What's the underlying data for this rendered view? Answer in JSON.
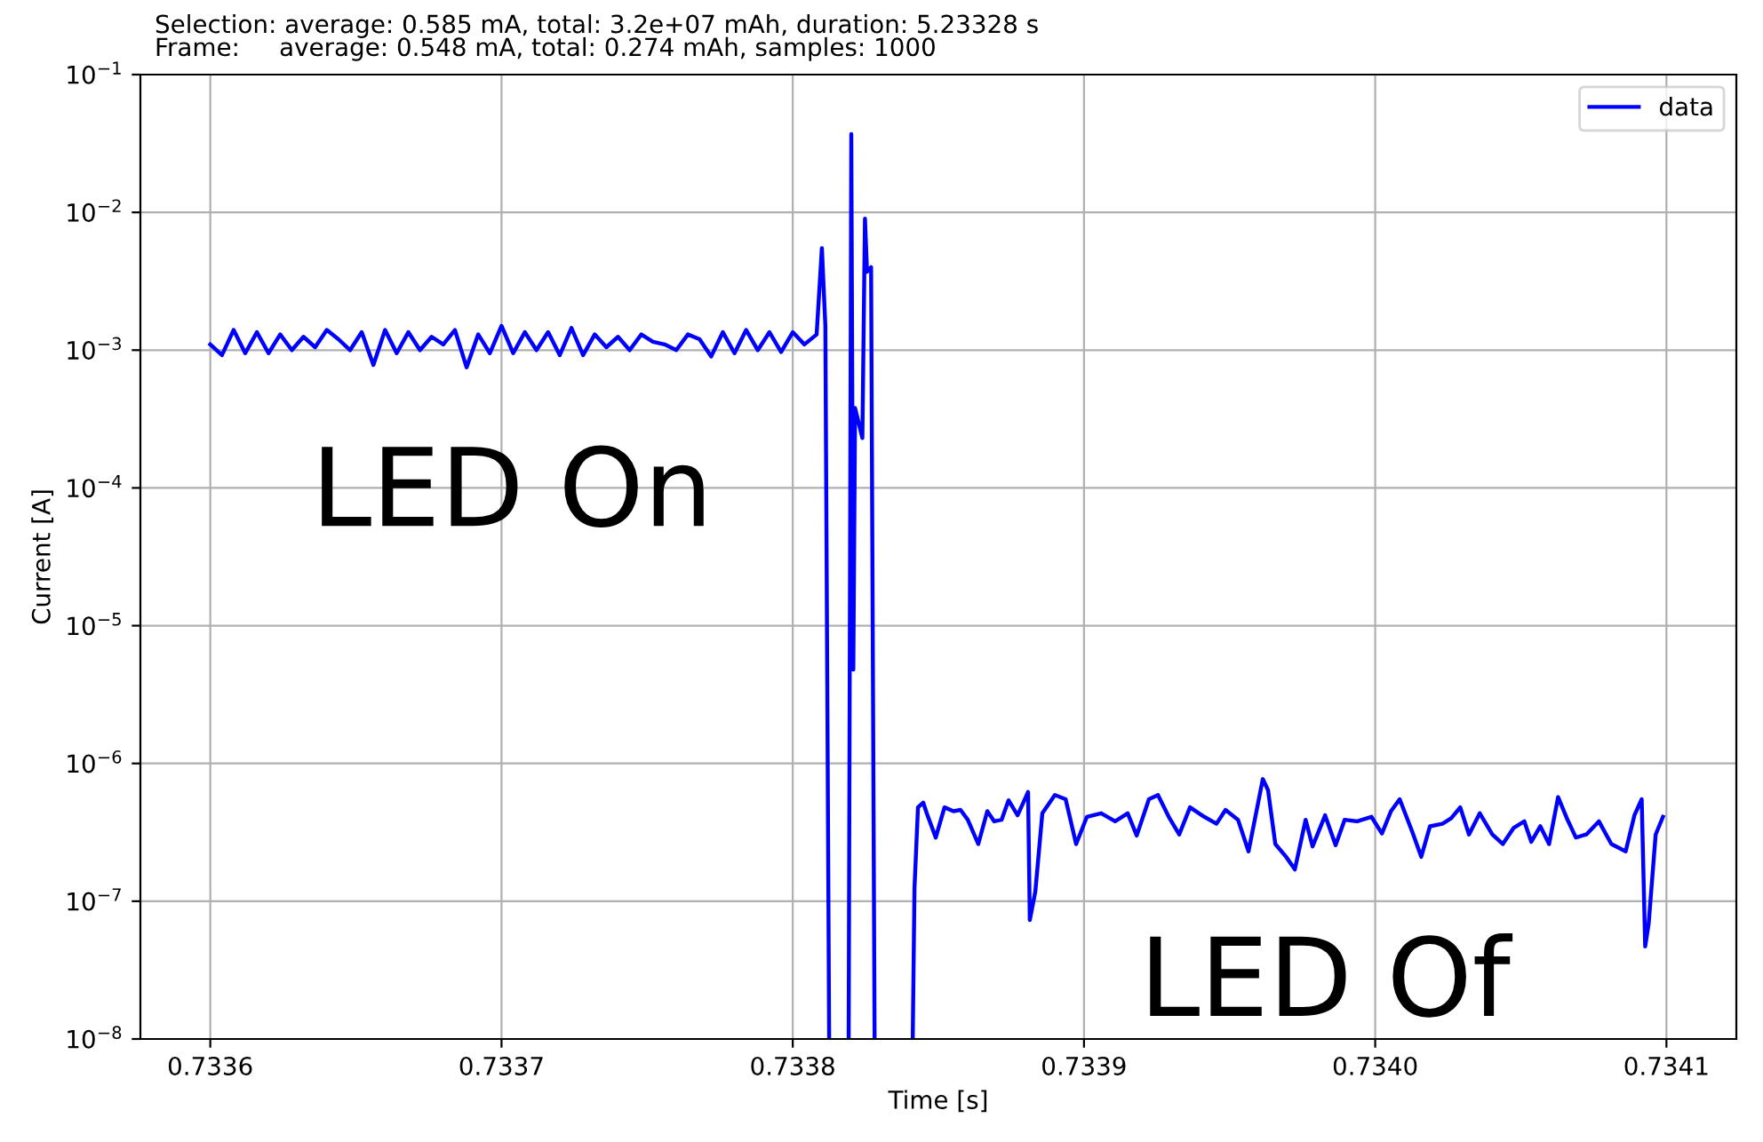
{
  "chart_data": {
    "type": "line",
    "title": "Selection: average: 0.585 mA, total: 3.2e+07 mAh, duration: 5.23328 s\nFrame:     average: 0.548 mA, total: 0.274 mAh, samples: 1000",
    "xlabel": "Time [s]",
    "ylabel": "Current [A]",
    "annotations": [
      "LED On",
      "LED Of"
    ],
    "log": true,
    "grid": true,
    "legend": "top right",
    "line_style": "solid",
    "xlim": [
      0.733576,
      0.734124
    ],
    "ylim": [
      1e-08,
      0.1
    ],
    "xticks": [
      0.7336,
      0.7337,
      0.7338,
      0.7339,
      {
        "value": 0.734,
        "label": "0.7340"
      },
      0.7341
    ],
    "yticks": [
      {
        "value": 1e-08,
        "label": "10$^{−8}$"
      },
      {
        "value": 1e-07,
        "label": "10$^{−7}$"
      },
      {
        "value": 1e-06,
        "label": "10$^{−6}$"
      },
      {
        "value": 1e-05,
        "label": "10$^{−5}$"
      },
      {
        "value": 0.0001,
        "label": "10$^{−4}$"
      },
      {
        "value": 0.001,
        "label": "10$^{−3}$"
      },
      {
        "value": 0.01,
        "label": "10$^{−2}$"
      },
      {
        "value": 0.1,
        "label": "10$^{−1}$"
      }
    ],
    "series": [
      {
        "name": "data",
        "color": "#0000ff",
        "x": [
          0.7336,
          0.733604,
          0.733608,
          0.733612,
          0.733616,
          0.73362,
          0.733624,
          0.733628,
          0.733632,
          0.733636,
          0.73364,
          0.733644,
          0.733648,
          0.733652,
          0.733656,
          0.73366,
          0.733664,
          0.733668,
          0.733672,
          0.733676,
          0.73368,
          0.733684,
          0.733688,
          0.733692,
          0.733696,
          0.7337,
          0.733704,
          0.733708,
          0.733712,
          0.733716,
          0.73372,
          0.733724,
          0.733728,
          0.733732,
          0.733736,
          0.73374,
          0.733744,
          0.733748,
          0.733752,
          0.733756,
          0.73376,
          0.733764,
          0.733768,
          0.733772,
          0.733776,
          0.73378,
          0.733784,
          0.733788,
          0.733792,
          0.733796,
          0.7338,
          0.733804,
          0.7338082,
          0.73381,
          0.7338112,
          0.7338125,
          0.733816,
          0.7338192,
          0.7338201,
          0.7338208,
          0.7338214,
          0.7338239,
          0.7338248,
          0.7338255,
          0.7338269,
          0.7338281,
          0.733835,
          0.7338412,
          0.7338418,
          0.733843,
          0.7338448,
          0.733846,
          0.7338491,
          0.7338521,
          0.7338552,
          0.7338576,
          0.7338601,
          0.7338637,
          0.7338668,
          0.7338692,
          0.7338717,
          0.7338741,
          0.7338772,
          0.7338808,
          0.7338814,
          0.7338833,
          0.7338857,
          0.73389,
          0.7338937,
          0.7338973,
          0.733901,
          0.7339059,
          0.7339107,
          0.733915,
          0.7339181,
          0.7339223,
          0.7339254,
          0.7339291,
          0.7339327,
          0.7339364,
          0.7339413,
          0.7339455,
          0.7339486,
          0.7339529,
          0.7339565,
          0.7339614,
          0.7339632,
          0.7339657,
          0.7339694,
          0.7339724,
          0.7339761,
          0.7339785,
          0.7339828,
          0.7339864,
          0.7339895,
          0.7339938,
          0.7339987,
          0.7340023,
          0.7340054,
          0.7340084,
          0.7340127,
          0.7340158,
          0.7340188,
          0.7340231,
          0.7340261,
          0.7340292,
          0.7340322,
          0.7340359,
          0.7340402,
          0.7340438,
          0.7340475,
          0.7340512,
          0.7340536,
          0.7340567,
          0.7340597,
          0.7340628,
          0.7340658,
          0.7340689,
          0.7340725,
          0.7340768,
          0.7340811,
          0.734086,
          0.734089,
          0.7340915,
          0.7340927,
          0.7340939,
          0.7340963,
          0.7340988
        ],
        "values": [
          0.0011,
          0.00092,
          0.0014,
          0.00095,
          0.00135,
          0.00095,
          0.0013,
          0.001,
          0.00125,
          0.00105,
          0.0014,
          0.0012,
          0.001,
          0.00135,
          0.00078,
          0.0014,
          0.00095,
          0.00135,
          0.001,
          0.00125,
          0.0011,
          0.0014,
          0.00075,
          0.0013,
          0.00095,
          0.0015,
          0.00095,
          0.00135,
          0.001,
          0.00135,
          0.00092,
          0.00145,
          0.00092,
          0.0013,
          0.00105,
          0.00125,
          0.001,
          0.0013,
          0.00115,
          0.0011,
          0.001,
          0.0013,
          0.0012,
          0.0009,
          0.00135,
          0.00095,
          0.0014,
          0.001,
          0.00135,
          0.00097,
          0.00135,
          0.0011,
          0.0013,
          0.0055,
          0.0015,
          1e-08,
          null,
          1e-08,
          0.037,
          4.8e-06,
          0.00038,
          0.00023,
          0.009,
          0.0037,
          0.004,
          1e-08,
          null,
          1e-08,
          1.25e-07,
          4.8e-07,
          5.2e-07,
          4.35e-07,
          2.9e-07,
          4.8e-07,
          4.5e-07,
          4.6e-07,
          3.9e-07,
          2.6e-07,
          4.5e-07,
          3.8e-07,
          3.9e-07,
          5.4e-07,
          4.2e-07,
          6.2e-07,
          7.3e-08,
          1.18e-07,
          4.35e-07,
          5.9e-07,
          5.5e-07,
          2.6e-07,
          4.1e-07,
          4.35e-07,
          3.8e-07,
          4.35e-07,
          3e-07,
          5.5e-07,
          5.9e-07,
          4.1e-07,
          3.05e-07,
          4.8e-07,
          4.1e-07,
          3.65e-07,
          4.6e-07,
          3.9e-07,
          2.3e-07,
          7.7e-07,
          6.4e-07,
          2.6e-07,
          2.1e-07,
          1.7e-07,
          3.9e-07,
          2.5e-07,
          4.2e-07,
          2.55e-07,
          3.9e-07,
          3.8e-07,
          4.1e-07,
          3.1e-07,
          4.5e-07,
          5.5e-07,
          3.2e-07,
          2.1e-07,
          3.5e-07,
          3.65e-07,
          4e-07,
          4.8e-07,
          3.05e-07,
          4.35e-07,
          3.05e-07,
          2.6e-07,
          3.4e-07,
          3.8e-07,
          2.7e-07,
          3.5e-07,
          2.6e-07,
          5.7e-07,
          4e-07,
          2.9e-07,
          3.05e-07,
          3.8e-07,
          2.6e-07,
          2.3e-07,
          4.2e-07,
          5.5e-07,
          4.7e-08,
          6.9e-08,
          3.05e-07,
          4.1e-07
        ]
      }
    ]
  }
}
